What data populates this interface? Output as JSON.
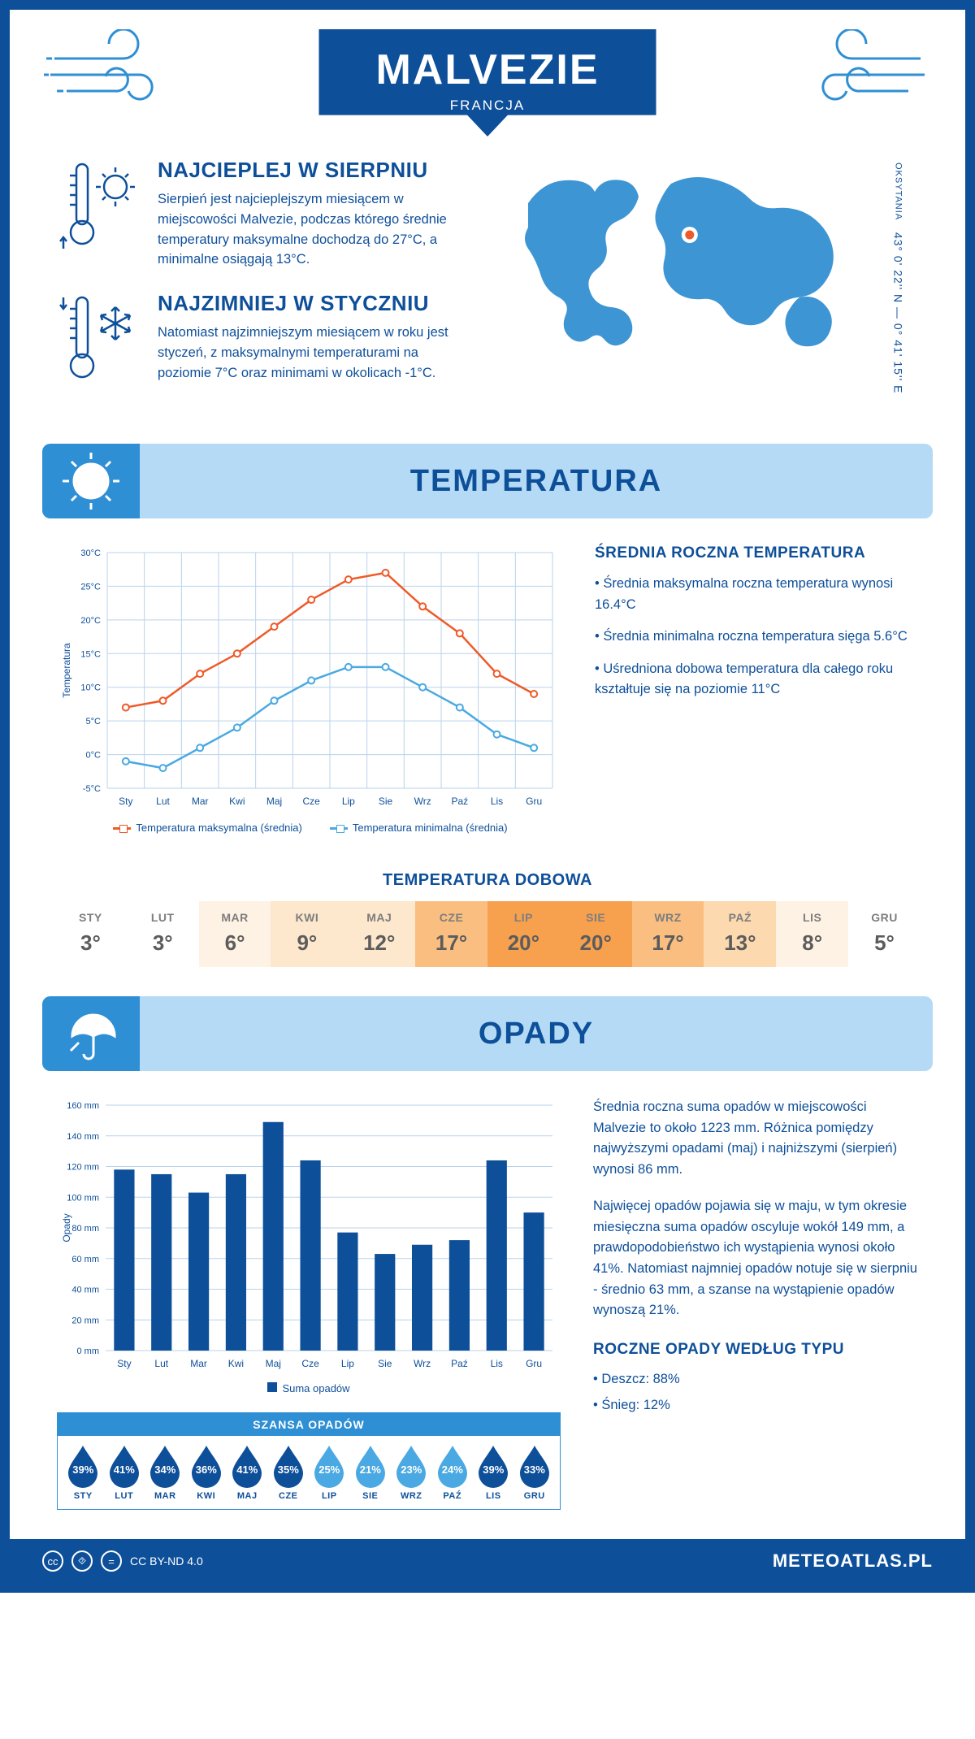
{
  "header": {
    "title": "MALVEZIE",
    "subtitle": "FRANCJA"
  },
  "location": {
    "region": "OKSYTANIA",
    "coords": "43° 0' 22'' N — 0° 41' 15'' E",
    "marker": {
      "cx_pct": 48,
      "cy_pct": 38
    }
  },
  "facts": {
    "hot": {
      "title": "NAJCIEPLEJ W SIERPNIU",
      "text": "Sierpień jest najcieplejszym miesiącem w miejscowości Malvezie, podczas którego średnie temperatury maksymalne dochodzą do 27°C, a minimalne osiągają 13°C."
    },
    "cold": {
      "title": "NAJZIMNIEJ W STYCZNIU",
      "text": "Natomiast najzimniejszym miesiącem w roku jest styczeń, z maksymalnymi temperaturami na poziomie 7°C oraz minimami w okolicach -1°C."
    }
  },
  "sections": {
    "temp": "TEMPERATURA",
    "precip": "OPADY"
  },
  "months_short": [
    "Sty",
    "Lut",
    "Mar",
    "Kwi",
    "Maj",
    "Cze",
    "Lip",
    "Sie",
    "Wrz",
    "Paź",
    "Lis",
    "Gru"
  ],
  "months_upper": [
    "STY",
    "LUT",
    "MAR",
    "KWI",
    "MAJ",
    "CZE",
    "LIP",
    "SIE",
    "WRZ",
    "PAŹ",
    "LIS",
    "GRU"
  ],
  "temperature_chart": {
    "type": "line",
    "y_axis_label": "Temperatura",
    "y_ticks": [
      -5,
      0,
      5,
      10,
      15,
      20,
      25,
      30
    ],
    "y_tick_labels": [
      "-5°C",
      "0°C",
      "5°C",
      "10°C",
      "15°C",
      "20°C",
      "25°C",
      "30°C"
    ],
    "ylim": [
      -5,
      30
    ],
    "series": {
      "max": {
        "label": "Temperatura maksymalna (średnia)",
        "color": "#ef5a28",
        "values": [
          7,
          8,
          12,
          15,
          19,
          23,
          26,
          27,
          22,
          18,
          12,
          9
        ]
      },
      "min": {
        "label": "Temperatura minimalna (średnia)",
        "color": "#4aa9e2",
        "values": [
          -1,
          -2,
          1,
          4,
          8,
          11,
          13,
          13,
          10,
          7,
          3,
          1
        ]
      }
    },
    "grid_color": "#b9d3eb",
    "background": "#ffffff",
    "marker": "circle-open"
  },
  "temperature_summary": {
    "title": "ŚREDNIA ROCZNA TEMPERATURA",
    "bullets": [
      "Średnia maksymalna roczna temperatura wynosi 16.4°C",
      "Średnia minimalna roczna temperatura sięga 5.6°C",
      "Uśredniona dobowa temperatura dla całego roku kształtuje się na poziomie 11°C"
    ]
  },
  "daily_temp": {
    "title": "TEMPERATURA DOBOWA",
    "values": [
      3,
      3,
      6,
      9,
      12,
      17,
      20,
      20,
      17,
      13,
      8,
      5
    ],
    "unit": "°",
    "colors": [
      "#ffffff",
      "#ffffff",
      "#fef2e4",
      "#fde7cd",
      "#fde7cd",
      "#fabf80",
      "#f7a14f",
      "#f7a14f",
      "#fabf80",
      "#fcd9af",
      "#fef2e4",
      "#ffffff"
    ]
  },
  "precip_chart": {
    "type": "bar",
    "y_axis_label": "Opady",
    "y_ticks": [
      0,
      20,
      40,
      60,
      80,
      100,
      120,
      140,
      160
    ],
    "y_tick_labels": [
      "0 mm",
      "20 mm",
      "40 mm",
      "60 mm",
      "80 mm",
      "100 mm",
      "120 mm",
      "140 mm",
      "160 mm"
    ],
    "ylim": [
      0,
      160
    ],
    "values": [
      118,
      115,
      103,
      115,
      149,
      124,
      77,
      63,
      69,
      72,
      124,
      90
    ],
    "bar_color": "#0e4f9a",
    "grid_color": "#b9d3eb",
    "legend_label": "Suma opadów"
  },
  "precip_text": {
    "p1": "Średnia roczna suma opadów w miejscowości Malvezie to około 1223 mm. Różnica pomiędzy najwyższymi opadami (maj) i najniższymi (sierpień) wynosi 86 mm.",
    "p2": "Najwięcej opadów pojawia się w maju, w tym okresie miesięczna suma opadów oscyluje wokół 149 mm, a prawdopodobieństwo ich wystąpienia wynosi około 41%. Natomiast najmniej opadów notuje się w sierpniu - średnio 63 mm, a szanse na wystąpienie opadów wynoszą 21%."
  },
  "chance": {
    "title": "SZANSA OPADÓW",
    "values": [
      39,
      41,
      34,
      36,
      41,
      35,
      25,
      21,
      23,
      24,
      39,
      33
    ],
    "dark_color": "#0e4f9a",
    "light_color": "#4aa9e2",
    "light_indices": [
      6,
      7,
      8,
      9
    ]
  },
  "by_type": {
    "title": "ROCZNE OPADY WEDŁUG TYPU",
    "items": [
      "Deszcz: 88%",
      "Śnieg: 12%"
    ]
  },
  "footer": {
    "license": "CC BY-ND 4.0",
    "site": "METEOATLAS.PL"
  }
}
